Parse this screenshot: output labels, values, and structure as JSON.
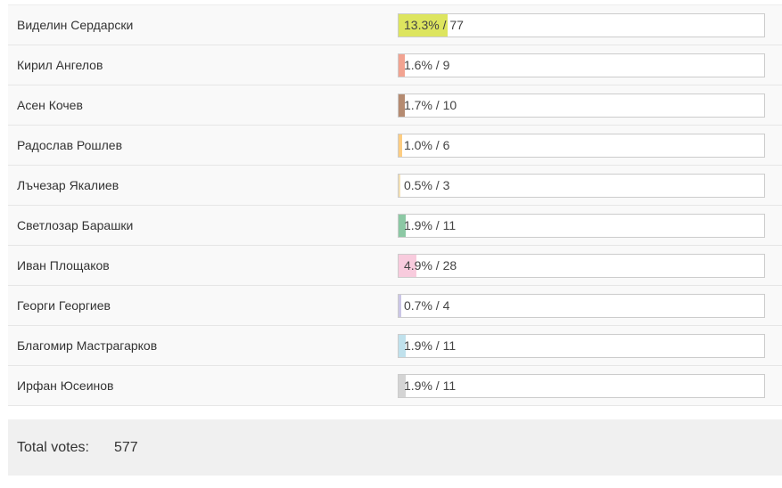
{
  "candidates": [
    {
      "name": "Виделин Сердарски",
      "result": "13.3% / 77",
      "percent": 13.3,
      "color": "#dde55f"
    },
    {
      "name": "Кирил Ангелов",
      "result": "1.6% / 9",
      "percent": 1.6,
      "color": "#f2a391"
    },
    {
      "name": "Асен Кочев",
      "result": "1.7% / 10",
      "percent": 1.7,
      "color": "#b58b71"
    },
    {
      "name": "Радослав Рошлев",
      "result": "1.0% / 6",
      "percent": 1.0,
      "color": "#fdcd82"
    },
    {
      "name": "Лъчезар Якалиев",
      "result": "0.5% / 3",
      "percent": 0.5,
      "color": "#f3e0b5"
    },
    {
      "name": "Светлозар Барашки",
      "result": "1.9% / 11",
      "percent": 1.9,
      "color": "#8cc8a4"
    },
    {
      "name": "Иван Площаков",
      "result": "4.9% / 28",
      "percent": 4.9,
      "color": "#f8cbdd"
    },
    {
      "name": "Георги Георгиев",
      "result": "0.7% / 4",
      "percent": 0.7,
      "color": "#cbc6e6"
    },
    {
      "name": "Благомир Мастрагарков",
      "result": "1.9% / 11",
      "percent": 1.9,
      "color": "#c0e1ec"
    },
    {
      "name": "Ирфан Юсеинов",
      "result": "1.9% / 11",
      "percent": 1.9,
      "color": "#d4d4d4"
    }
  ],
  "total": {
    "label": "Total votes:",
    "value": "577"
  }
}
